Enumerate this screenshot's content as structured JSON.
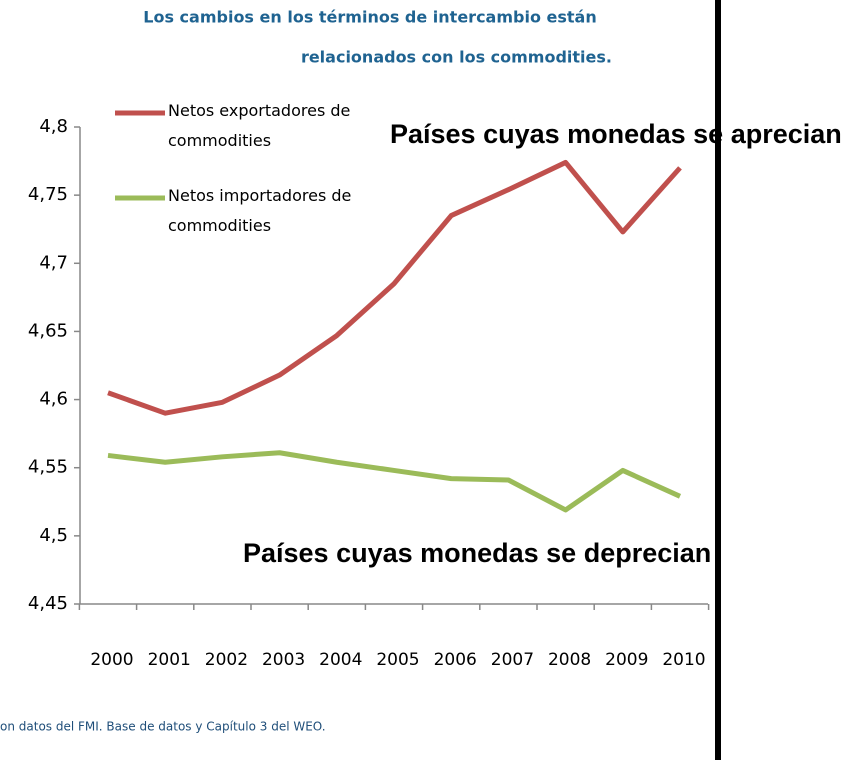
{
  "chart_data": {
    "type": "line",
    "title": "Los cambios en los términos de intercambio están",
    "subtitle": "relacionados con los commodities.",
    "categories": [
      "2000",
      "2001",
      "2002",
      "2003",
      "2004",
      "2005",
      "2006",
      "2007",
      "2008",
      "2009",
      "2010"
    ],
    "series": [
      {
        "name": "Netos exportadores de commodities",
        "color": "#c0504d",
        "values": [
          4.605,
          4.59,
          4.598,
          4.618,
          4.647,
          4.685,
          4.735,
          4.754,
          4.774,
          4.723,
          4.77
        ]
      },
      {
        "name": "Netos importadores de commodities",
        "color": "#9bbb59",
        "values": [
          4.559,
          4.554,
          4.558,
          4.561,
          4.554,
          4.548,
          4.542,
          4.541,
          4.519,
          4.548,
          4.529
        ]
      }
    ],
    "ylim": [
      4.45,
      4.8
    ],
    "yticks": [
      {
        "value": 4.45,
        "label": "4,45"
      },
      {
        "value": 4.5,
        "label": "4,5"
      },
      {
        "value": 4.55,
        "label": "4,55"
      },
      {
        "value": 4.6,
        "label": "4,6"
      },
      {
        "value": 4.65,
        "label": "4,65"
      },
      {
        "value": 4.7,
        "label": "4,7"
      },
      {
        "value": 4.75,
        "label": "4,75"
      },
      {
        "value": 4.8,
        "label": "4,8"
      }
    ],
    "grid": false,
    "annotations": [
      "Países cuyas monedas se aprecian",
      "Países cuyas monedas se deprecian"
    ],
    "source": "on datos del FMI. Base de datos y Capítulo 3 del WEO."
  }
}
